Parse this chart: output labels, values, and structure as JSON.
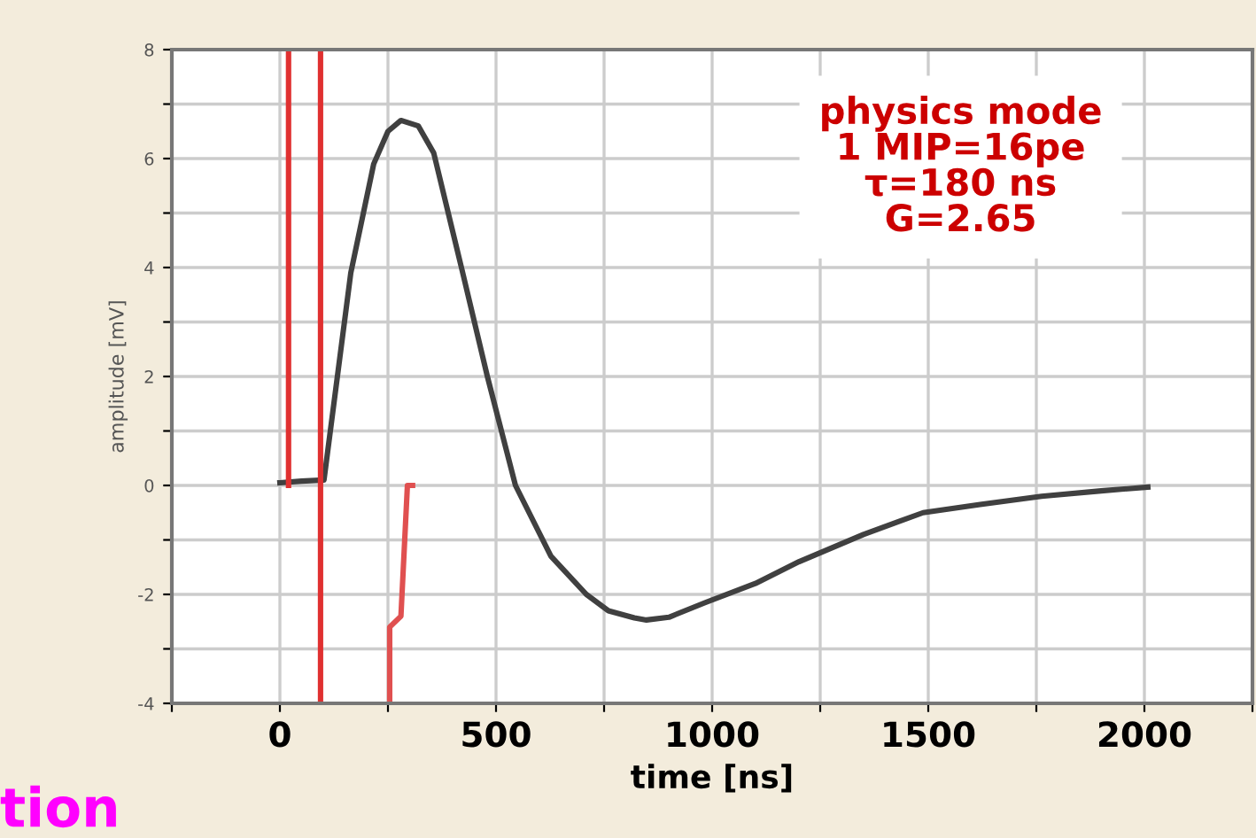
{
  "chart_data": {
    "type": "line",
    "xlabel": "time [ns]",
    "ylabel": "amplitude [mV]",
    "xlim": [
      -250,
      2250
    ],
    "ylim": [
      -4,
      8
    ],
    "xticks": [
      {
        "value": -250,
        "label": null
      },
      0,
      {
        "value": 250,
        "label": null
      },
      500,
      {
        "value": 750,
        "label": null
      },
      1000,
      {
        "value": 1250,
        "label": null
      },
      1500,
      {
        "value": 1750,
        "label": null
      },
      2000,
      {
        "value": 2250,
        "label": null
      }
    ],
    "yticks": [
      -4,
      {
        "value": -3,
        "label": null
      },
      -2,
      {
        "value": -1,
        "label": null
      },
      0,
      {
        "value": 1,
        "label": null
      },
      2,
      {
        "value": 3,
        "label": null
      },
      4,
      {
        "value": 5,
        "label": null
      },
      6,
      {
        "value": 7,
        "label": null
      },
      8
    ],
    "grid": true,
    "series": [
      {
        "color": "#404040",
        "x": [
          0,
          50,
          102,
          164,
          217,
          250,
          280,
          320,
          356,
          423,
          480,
          545,
          627,
          709,
          760,
          820,
          848,
          900,
          984,
          1100,
          1201,
          1350,
          1488,
          1620,
          1762,
          1900,
          2008
        ],
        "values": [
          0.05,
          0.08,
          0.1,
          3.9,
          5.9,
          6.5,
          6.7,
          6.6,
          6.1,
          3.9,
          2.0,
          0.0,
          -1.3,
          -2.0,
          -2.3,
          -2.43,
          -2.47,
          -2.42,
          -2.15,
          -1.8,
          -1.4,
          -0.9,
          -0.5,
          -0.35,
          -0.2,
          -0.1,
          -0.03
        ]
      },
      {
        "color": "#e03030",
        "x": [
          20,
          20
        ],
        "values": [
          0,
          8
        ]
      },
      {
        "color": "#e03030",
        "x": [
          94,
          94
        ],
        "values": [
          -4,
          8
        ]
      },
      {
        "color": "#e05050",
        "x": [
          254,
          254,
          280,
          295,
          307
        ],
        "values": [
          -4,
          -2.6,
          -2.4,
          0,
          0
        ]
      }
    ],
    "annotations": [
      "physics mode\n1 MIP=16pe\nτ=180 ns\nG=2.65",
      "tion"
    ]
  }
}
